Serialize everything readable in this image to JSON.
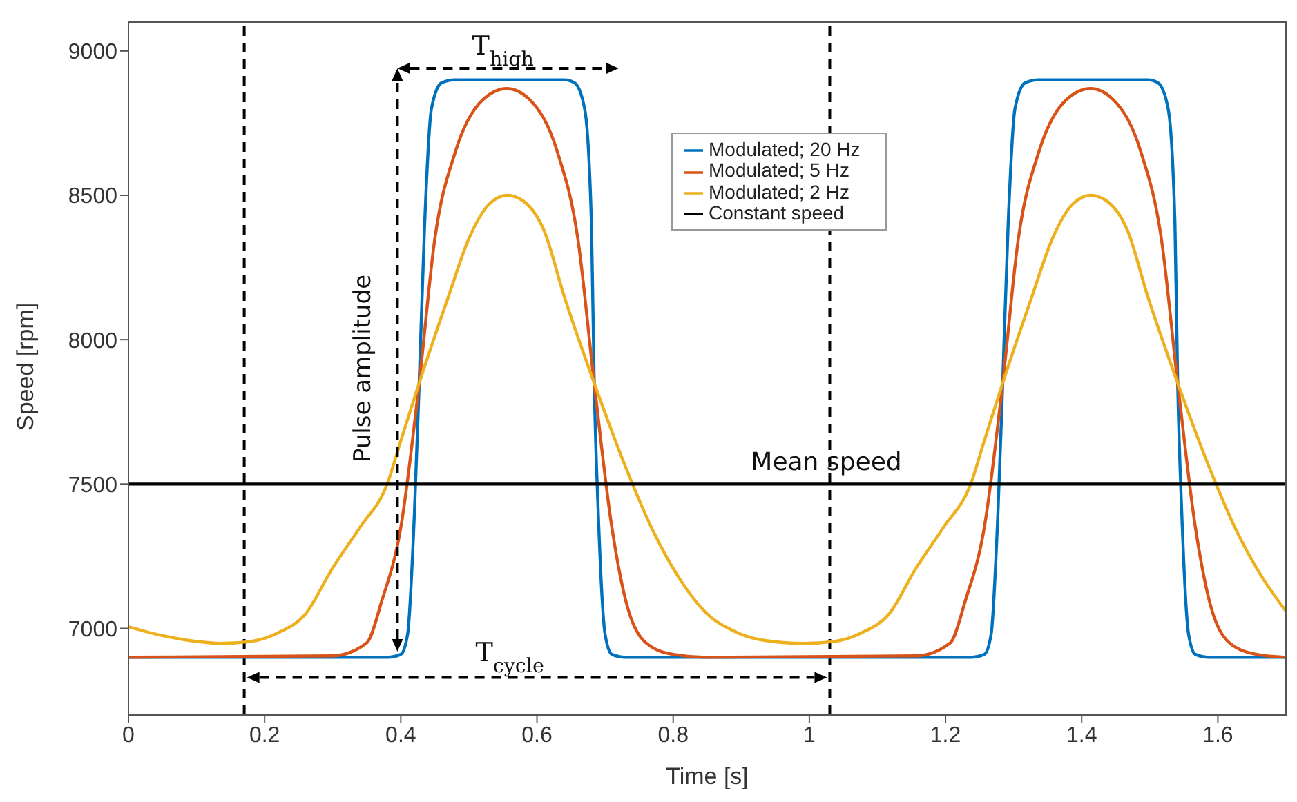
{
  "chart_data": {
    "type": "line",
    "xlabel": "Time [s]",
    "ylabel": "Speed [rpm]",
    "xlim": [
      0,
      1.7
    ],
    "xticks": [
      0,
      0.2,
      0.4,
      0.6,
      0.8,
      1,
      1.2,
      1.4,
      1.6
    ],
    "ylim": [
      6700,
      9100
    ],
    "yticks": [
      7000,
      7500,
      8000,
      8500,
      9000
    ],
    "grid": false,
    "legend": "top right",
    "marker": "none",
    "line_style": "solid",
    "series": [
      {
        "name": "Modulated; 20 Hz",
        "color": "#0072bd",
        "x": [
          0,
          0.38,
          0.4,
          0.41,
          0.42,
          0.427,
          0.435,
          0.445,
          0.46,
          0.48,
          0.64,
          0.655,
          0.67,
          0.68,
          0.684,
          0.69,
          0.7,
          0.71,
          0.73,
          1.237,
          1.257,
          1.267,
          1.277,
          1.284,
          1.292,
          1.302,
          1.317,
          1.337,
          1.497,
          1.512,
          1.527,
          1.537,
          1.541,
          1.547,
          1.557,
          1.567,
          1.587,
          1.7
        ],
        "values": [
          6900,
          6900,
          6910,
          6980,
          7400,
          7850,
          8400,
          8800,
          8890,
          8900,
          8900,
          8890,
          8800,
          8400,
          7850,
          7400,
          6980,
          6910,
          6900,
          6900,
          6910,
          6980,
          7400,
          7850,
          8400,
          8800,
          8890,
          8900,
          8900,
          8890,
          8800,
          8400,
          7850,
          7400,
          6980,
          6910,
          6900,
          6900
        ]
      },
      {
        "name": "Modulated; 5 Hz",
        "color": "#d95319",
        "x": [
          0,
          0.3,
          0.35,
          0.372,
          0.4,
          0.427,
          0.45,
          0.48,
          0.52,
          0.556,
          0.59,
          0.63,
          0.66,
          0.684,
          0.71,
          0.73,
          0.76,
          0.8,
          0.85,
          1.157,
          1.207,
          1.229,
          1.257,
          1.284,
          1.307,
          1.337,
          1.377,
          1.413,
          1.447,
          1.487,
          1.517,
          1.541,
          1.567,
          1.587,
          1.617,
          1.657,
          1.7
        ],
        "values": [
          6900,
          6905,
          6950,
          7095,
          7350,
          7850,
          8350,
          8650,
          8830,
          8870,
          8830,
          8650,
          8350,
          7850,
          7350,
          7100,
          6950,
          6910,
          6900,
          6905,
          6950,
          7095,
          7350,
          7850,
          8350,
          8650,
          8830,
          8870,
          8830,
          8650,
          8350,
          7850,
          7350,
          7100,
          6950,
          6910,
          6900
        ]
      },
      {
        "name": "Modulated; 2 Hz",
        "color": "#edb120",
        "x": [
          0,
          0.05,
          0.1,
          0.135,
          0.18,
          0.22,
          0.26,
          0.3,
          0.34,
          0.38,
          0.4,
          0.427,
          0.47,
          0.5,
          0.53,
          0.556,
          0.58,
          0.61,
          0.64,
          0.684,
          0.73,
          0.77,
          0.81,
          0.85,
          0.89,
          0.93,
          0.992,
          1.037,
          1.077,
          1.117,
          1.157,
          1.197,
          1.237,
          1.257,
          1.284,
          1.327,
          1.357,
          1.387,
          1.413,
          1.437,
          1.467,
          1.497,
          1.541,
          1.587,
          1.627,
          1.667,
          1.7
        ],
        "values": [
          7006,
          6975,
          6955,
          6948,
          6955,
          6985,
          7050,
          7210,
          7350,
          7500,
          7650,
          7850,
          8150,
          8350,
          8470,
          8500,
          8480,
          8380,
          8150,
          7850,
          7560,
          7340,
          7170,
          7050,
          6990,
          6960,
          6948,
          6955,
          6985,
          7050,
          7210,
          7350,
          7500,
          7650,
          7850,
          8150,
          8350,
          8470,
          8500,
          8480,
          8380,
          8150,
          7850,
          7560,
          7340,
          7170,
          7060
        ]
      },
      {
        "name": "Constant speed",
        "color": "#000000",
        "x": [
          0,
          1.7
        ],
        "values": [
          7500,
          7500
        ]
      }
    ],
    "ref_lines": [
      {
        "axis": "x",
        "value": 0.17,
        "label": null,
        "color": "#000000",
        "line_style": "dashed"
      },
      {
        "axis": "x",
        "value": 1.03,
        "label": null,
        "color": "#000000",
        "line_style": "dashed"
      }
    ],
    "annotations": [
      "T$_{high}$",
      "Pulse amplitude",
      "T$_{cycle}$",
      "Mean speed"
    ]
  }
}
